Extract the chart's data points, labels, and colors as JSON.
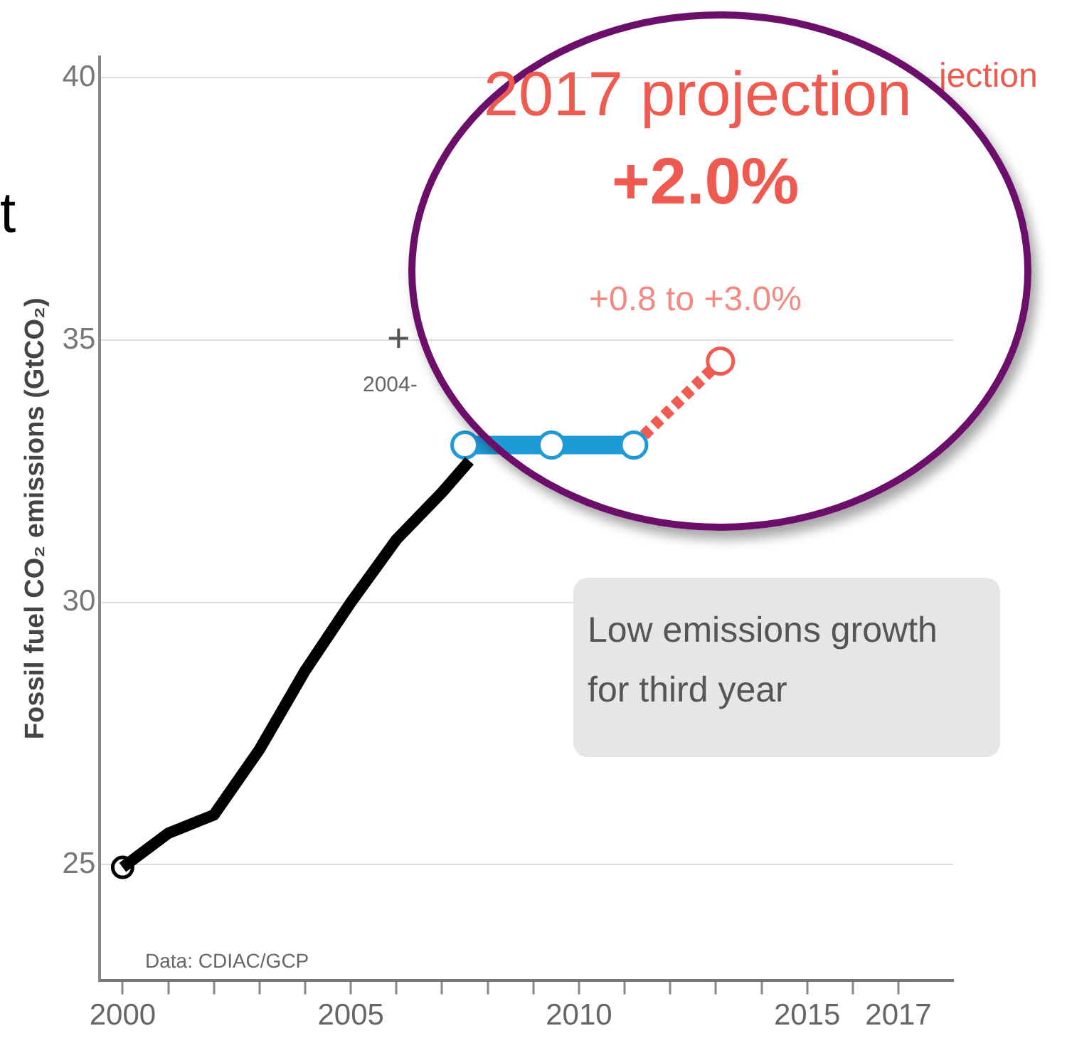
{
  "chart_data": {
    "type": "line",
    "ylabel": "Fossil fuel CO₂ emissions (GtCO₂)",
    "xlim": [
      1999.5,
      2018.2
    ],
    "ylim": [
      22.8,
      40.4
    ],
    "xticks": [
      2000,
      {
        "value": 2001,
        "label": null
      },
      {
        "value": 2002,
        "label": null
      },
      {
        "value": 2003,
        "label": null
      },
      {
        "value": 2004,
        "label": null
      },
      2005,
      {
        "value": 2006,
        "label": null
      },
      {
        "value": 2007,
        "label": null
      },
      {
        "value": 2008,
        "label": null
      },
      {
        "value": 2009,
        "label": null
      },
      2010,
      {
        "value": 2011,
        "label": null
      },
      {
        "value": 2012,
        "label": null
      },
      {
        "value": 2013,
        "label": null
      },
      {
        "value": 2014,
        "label": null
      },
      2015,
      {
        "value": 2016,
        "label": null
      },
      2017
    ],
    "yticks": [
      25,
      30,
      35,
      40
    ],
    "grid": "y",
    "legend": false,
    "series": [
      {
        "color": "#000000",
        "marker": "none",
        "x": [
          2000,
          2001,
          2002,
          2003,
          2004,
          2005,
          2006,
          2007,
          2007.6
        ],
        "values": [
          24.95,
          25.6,
          25.95,
          27.2,
          28.7,
          30.0,
          31.2,
          32.1,
          32.7
        ]
      },
      {
        "type": "scatter",
        "color": "#000000",
        "marker": "circle",
        "x": [
          2000
        ],
        "values": [
          24.95
        ]
      },
      {
        "color": "#1e9ad6",
        "marker": "circle",
        "x": [
          2007.5,
          2009.4,
          2011.2
        ],
        "values": [
          33.0,
          33.0,
          33.0
        ]
      },
      {
        "color": "#f05a50",
        "marker": "circle",
        "line_style": "dashed",
        "x": [
          2011.2,
          2013.1
        ],
        "values": [
          33.0,
          34.6
        ]
      }
    ],
    "annotations": [
      "2017 projection",
      "+2.0%",
      "+0.8 to +3.0%",
      "Low emissions growth for third year",
      "Data: CDIAC/GCP",
      "+",
      "2004-",
      "jection",
      "t"
    ]
  }
}
